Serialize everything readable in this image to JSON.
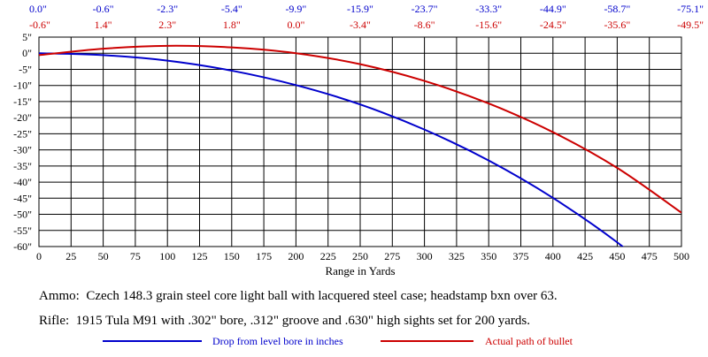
{
  "chart_data": {
    "type": "line",
    "title": "",
    "xlabel": "Range in Yards",
    "ylabel": "",
    "xlim": [
      0,
      500
    ],
    "ylim": [
      -60,
      5
    ],
    "grid": true,
    "x_ticks": [
      "0",
      "25",
      "50",
      "75",
      "100",
      "125",
      "150",
      "175",
      "200",
      "225",
      "250",
      "275",
      "300",
      "325",
      "350",
      "375",
      "400",
      "425",
      "450",
      "475",
      "500"
    ],
    "y_ticks": [
      "5\"",
      "0\"",
      "-5\"",
      "-10\"",
      "-15\"",
      "-20\"",
      "-25\"",
      "-30\"",
      "-35\"",
      "-40\"",
      "-45\"",
      "-50\"",
      "-55\"",
      "-60\""
    ],
    "top_labels": {
      "drop": [
        "0.0\"",
        "-0.6\"",
        "-2.3\"",
        "-5.4\"",
        "-9.9\"",
        "-15.9\"",
        "-23.7\"",
        "-33.3\"",
        "-44.9\"",
        "-58.7\"",
        "-75.1\""
      ],
      "path": [
        "-0.6\"",
        "1.4\"",
        "2.3\"",
        "1.8\"",
        "0.0\"",
        "-3.4\"",
        "-8.6\"",
        "-15.6\"",
        "-24.5\"",
        "-35.6\"",
        "-49.5\""
      ]
    },
    "x": [
      0,
      50,
      100,
      150,
      200,
      250,
      300,
      350,
      400,
      450,
      500
    ],
    "series": [
      {
        "name": "Drop from level bore in inches",
        "color": "#0000cc",
        "values": [
          0.0,
          -0.6,
          -2.3,
          -5.4,
          -9.9,
          -15.9,
          -23.7,
          -33.3,
          -44.9,
          -58.7,
          -75.1
        ]
      },
      {
        "name": "Actual path of bullet",
        "color": "#cc0000",
        "values": [
          -0.6,
          1.4,
          2.3,
          1.8,
          0.0,
          -3.4,
          -8.6,
          -15.6,
          -24.5,
          -35.6,
          -49.5
        ]
      }
    ],
    "notes": [
      "Ammo:  Czech 148.3 grain steel core light ball with lacquered steel case; headstamp bxn over 63.",
      "Rifle:  1915 Tula M91 with .302\" bore, .312\" groove and .630\" high sights set for 200 yards."
    ],
    "legend_placement": "bottom"
  }
}
